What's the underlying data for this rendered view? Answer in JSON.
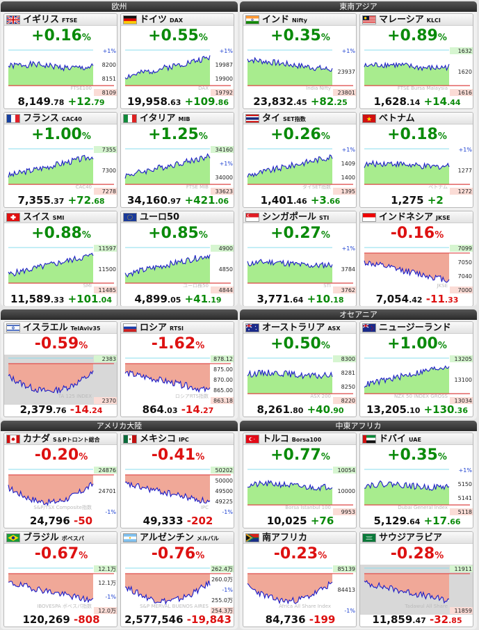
{
  "colors": {
    "up": "#0a8a0a",
    "down": "#dd1111",
    "fill_up": "#a8ec8e",
    "fill_down": "#f0a898",
    "line": "#1b1bc8",
    "hi": "#88ddee",
    "lo": "#dd4444"
  },
  "sections": [
    {
      "title": "欧州",
      "cards": [
        {
          "flag": "uk-flag-icon",
          "name": "イギリス",
          "code": "FTSE",
          "pct": "+0.16",
          "dir": "up",
          "p1": "8,149",
          "p2": ".78",
          "c1": "+12",
          "c2": ".79",
          "wm": "FTSE100",
          "ticks": [
            "+1%",
            "8200",
            "8151",
            "8109"
          ],
          "baseF": 0.76,
          "highF": 0.05,
          "trend": "f",
          "seed": 1
        },
        {
          "flag": "germany-flag-icon",
          "name": "ドイツ",
          "code": "DAX",
          "pct": "+0.55",
          "dir": "up",
          "p1": "19,958",
          "p2": ".63",
          "c1": "+109",
          "c2": ".86",
          "wm": "DAX",
          "ticks": [
            "+1%",
            "19987",
            "19900",
            "19792"
          ],
          "baseF": 0.8,
          "highF": 0.1,
          "trend": "u",
          "seed": 2
        },
        {
          "flag": "france-flag-icon",
          "name": "フランス",
          "code": "CAC40",
          "pct": "+1.00",
          "dir": "up",
          "p1": "7,355",
          "p2": ".37",
          "c1": "+72",
          "c2": ".68",
          "wm": "CAC40",
          "ticks": [
            "7355",
            "7300",
            "7278"
          ],
          "baseF": 0.95,
          "highF": 0.05,
          "trend": "u",
          "seed": 3
        },
        {
          "flag": "italy-flag-icon",
          "name": "イタリア",
          "code": "MIB",
          "pct": "+1.25",
          "dir": "up",
          "p1": "34,160",
          "p2": ".97",
          "c1": "+421",
          "c2": ".06",
          "wm": "FTSE MIB",
          "ticks": [
            "34160",
            "+1%",
            "34000",
            "33623"
          ],
          "baseF": 0.93,
          "highF": 0.25,
          "trend": "u",
          "seed": 4
        },
        {
          "flag": "swiss-flag-icon",
          "name": "スイス",
          "code": "SMI",
          "pct": "+0.88",
          "dir": "up",
          "p1": "11,589",
          "p2": ".33",
          "c1": "+101",
          "c2": ".04",
          "wm": "SMI",
          "ticks": [
            "11597",
            "11500",
            "11485"
          ],
          "baseF": 0.95,
          "highF": 0.05,
          "trend": "u",
          "seed": 5
        },
        {
          "flag": "eu-flag-icon",
          "name": "ユーロ50",
          "code": "",
          "pct": "+0.85",
          "dir": "up",
          "p1": "4,899",
          "p2": ".05",
          "c1": "+41",
          "c2": ".19",
          "wm": "ユーロ株50",
          "ticks": [
            "4900",
            "4850",
            "4844"
          ],
          "baseF": 0.85,
          "highF": 0.05,
          "trend": "u",
          "seed": 6
        }
      ]
    },
    {
      "title": "東南アジア",
      "cards": [
        {
          "flag": "india-flag-icon",
          "name": "インド",
          "code": "Nifty",
          "pct": "+0.35",
          "dir": "up",
          "p1": "23,832",
          "p2": ".45",
          "c1": "+82",
          "c2": ".25",
          "wm": "India Nifty",
          "ticks": [
            "+1%",
            "23937",
            "23801"
          ],
          "baseF": 0.75,
          "highF": 0.05,
          "trend": "d",
          "seed": 7
        },
        {
          "flag": "malaysia-flag-icon",
          "name": "マレーシア",
          "code": "KLCI",
          "pct": "+0.89",
          "dir": "up",
          "p1": "1,628",
          "p2": ".14",
          "c1": "+14",
          "c2": ".44",
          "wm": "FTSE Bursa Malaysia",
          "ticks": [
            "1632",
            "1620",
            "1616"
          ],
          "baseF": 0.95,
          "highF": 0.05,
          "trend": "f",
          "seed": 8
        },
        {
          "flag": "thai-flag-icon",
          "name": "タイ",
          "code": "SET指数",
          "pct": "+0.26",
          "dir": "up",
          "p1": "1,401",
          "p2": ".46",
          "c1": "+3",
          "c2": ".66",
          "wm": "タイSET指数",
          "ticks": [
            "+1%",
            "1409",
            "1400",
            "1395"
          ],
          "baseF": 0.8,
          "highF": 0.05,
          "trend": "u",
          "seed": 9
        },
        {
          "flag": "vietnam-flag-icon",
          "name": "ベトナム",
          "code": "",
          "pct": "+0.18",
          "dir": "up",
          "p1": "1,275",
          "p2": "",
          "c1": "+2",
          "c2": "",
          "wm": "ベトナム",
          "ticks": [
            "+1%",
            "1277",
            "1272"
          ],
          "baseF": 0.85,
          "highF": 0.05,
          "trend": "f",
          "seed": 10
        },
        {
          "flag": "singapore-flag-icon",
          "name": "シンガポール",
          "code": "STI",
          "pct": "+0.27",
          "dir": "up",
          "p1": "3,771",
          "p2": ".64",
          "c1": "+10",
          "c2": ".18",
          "wm": "STI",
          "ticks": [
            "+1%",
            "3784",
            "3762"
          ],
          "baseF": 0.8,
          "highF": 0.05,
          "trend": "f",
          "seed": 11
        },
        {
          "flag": "indonesia-flag-icon",
          "name": "インドネシア",
          "code": "JKSE",
          "pct": "-0.16",
          "dir": "dn",
          "p1": "7,054",
          "p2": ".42",
          "c1": "-11",
          "c2": ".33",
          "wm": "JKSE",
          "ticks": [
            "7099",
            "7050",
            "7040",
            "7000"
          ],
          "baseF": 0.3,
          "highF": 0.05,
          "trend": "d",
          "seed": 12
        }
      ]
    },
    {
      "title": "オセアニア",
      "cards": [
        {
          "flag": "israel-flag-icon",
          "name": "イスラエル",
          "code": "TelAviv35",
          "pct": "-0.59",
          "dir": "dn",
          "p1": "2,379",
          "p2": ".76",
          "c1": "-14",
          "c2": ".24",
          "wm": "TA 125 INDEX",
          "ticks": [
            "2383",
            "2370"
          ],
          "baseF": 0.05,
          "highF": 0.05,
          "trend": "v",
          "seed": 13,
          "closed": true
        },
        {
          "flag": "russia-flag-icon",
          "name": "ロシア",
          "code": "RTSI",
          "pct": "-1.62",
          "dir": "dn",
          "p1": "864",
          "p2": ".03",
          "c1": "-14",
          "c2": ".27",
          "wm": "ロシアRTS指数",
          "ticks": [
            "878.12",
            "875.00",
            "870.00",
            "865.00",
            "863.18"
          ],
          "baseF": 0.05,
          "highF": 0.05,
          "trend": "d",
          "seed": 14
        },
        {
          "flag": "australia-flag-icon",
          "name": "オーストラリア",
          "code": "ASX",
          "pct": "+0.50",
          "dir": "up",
          "p1": "8,261",
          "p2": ".80",
          "c1": "+40",
          "c2": ".90",
          "wm": "ASX 200",
          "ticks": [
            "8300",
            "8281",
            "8250",
            "8220"
          ],
          "baseF": 0.95,
          "highF": 0.05,
          "trend": "f",
          "seed": 15
        },
        {
          "flag": "nz-flag-icon",
          "name": "ニュージーランド",
          "code": "",
          "pct": "+1.00",
          "dir": "up",
          "p1": "13,205",
          "p2": ".10",
          "c1": "+130",
          "c2": ".36",
          "wm": "NZX 50 INDEX GROSS",
          "ticks": [
            "13205",
            "13100",
            "13034"
          ],
          "baseF": 0.95,
          "highF": 0.05,
          "trend": "u",
          "seed": 16
        }
      ]
    },
    {
      "title": "アメリカ大陸",
      "cards": [
        {
          "flag": "canada-flag-icon",
          "name": "カナダ",
          "code": "S＆Pトロント総合",
          "pct": "-0.20",
          "dir": "dn",
          "p1": "24,796",
          "p2": "",
          "c1": "-50",
          "c2": "",
          "wm": "S&P/TSX Composite指数",
          "ticks": [
            "24876",
            "24701",
            "-1%"
          ],
          "baseF": 0.2,
          "highF": 0.05,
          "trend": "v",
          "seed": 17
        },
        {
          "flag": "mexico-flag-icon",
          "name": "メキシコ",
          "code": "IPC",
          "pct": "-0.41",
          "dir": "dn",
          "p1": "49,333",
          "p2": "",
          "c1": "-202",
          "c2": "",
          "wm": "IPC",
          "ticks": [
            "50202",
            "50000",
            "49500",
            "49225",
            "-1%"
          ],
          "baseF": 0.1,
          "highF": 0.05,
          "trend": "d",
          "seed": 18
        },
        {
          "flag": "brazil-flag-icon",
          "name": "ブラジル",
          "code": "ボベスパ",
          "pct": "-0.67",
          "dir": "dn",
          "p1": "120,269",
          "p2": "",
          "c1": "-808",
          "c2": "",
          "wm": "IBOVESPA ボベスパ指数",
          "ticks": [
            "12.1万",
            "12.1万",
            "-1%",
            "12.0万"
          ],
          "baseF": 0.3,
          "highF": 0.05,
          "trend": "d",
          "seed": 19
        },
        {
          "flag": "argentina-flag-icon",
          "name": "アルゼンチン",
          "code": "メルバル",
          "pct": "-0.76",
          "dir": "dn",
          "p1": "2,577,546",
          "p2": "",
          "c1": "-19,843",
          "c2": "",
          "wm": "S&P MERVAL BUENOS AIRES",
          "ticks": [
            "262.4万",
            "260.0万",
            "-1%",
            "255.0万",
            "254.3万"
          ],
          "baseF": 0.25,
          "highF": 0.05,
          "trend": "v",
          "seed": 20
        }
      ]
    },
    {
      "title": "中東アフリカ",
      "cards": [
        {
          "flag": "turkey-flag-icon",
          "name": "トルコ",
          "code": "Borsa100",
          "pct": "+0.77",
          "dir": "up",
          "p1": "10,025",
          "p2": "",
          "c1": "+76",
          "c2": "",
          "wm": "Borsa Istanbul 100",
          "ticks": [
            "10054",
            "10000",
            "9953"
          ],
          "baseF": 0.9,
          "highF": 0.05,
          "trend": "f",
          "seed": 21
        },
        {
          "flag": "dubai-flag-icon",
          "name": "ドバイ",
          "code": "UAE",
          "pct": "+0.35",
          "dir": "up",
          "p1": "5,129",
          "p2": ".64",
          "c1": "+17",
          "c2": ".66",
          "wm": "Dubai General Index",
          "ticks": [
            "+1%",
            "5150",
            "5141",
            "5118"
          ],
          "baseF": 0.85,
          "highF": 0.05,
          "trend": "f",
          "seed": 22
        },
        {
          "flag": "south-africa-flag-icon",
          "name": "南アフリカ",
          "code": "",
          "pct": "-0.23",
          "dir": "dn",
          "p1": "84,736",
          "p2": "",
          "c1": "-199",
          "c2": "",
          "wm": "Africa All Share Index",
          "ticks": [
            "85139",
            "84413",
            "-1%"
          ],
          "baseF": 0.15,
          "highF": 0.05,
          "trend": "v",
          "seed": 23
        },
        {
          "flag": "saudi-flag-icon",
          "name": "サウジアラビア",
          "code": "",
          "pct": "-0.28",
          "dir": "dn",
          "p1": "11,859",
          "p2": ".47",
          "c1": "-32",
          "c2": ".85",
          "wm": "Tadawul All Share",
          "ticks": [
            "11911",
            "11859"
          ],
          "baseF": 0.25,
          "highF": 0.05,
          "trend": "d",
          "seed": 24,
          "closed": true
        }
      ]
    }
  ]
}
